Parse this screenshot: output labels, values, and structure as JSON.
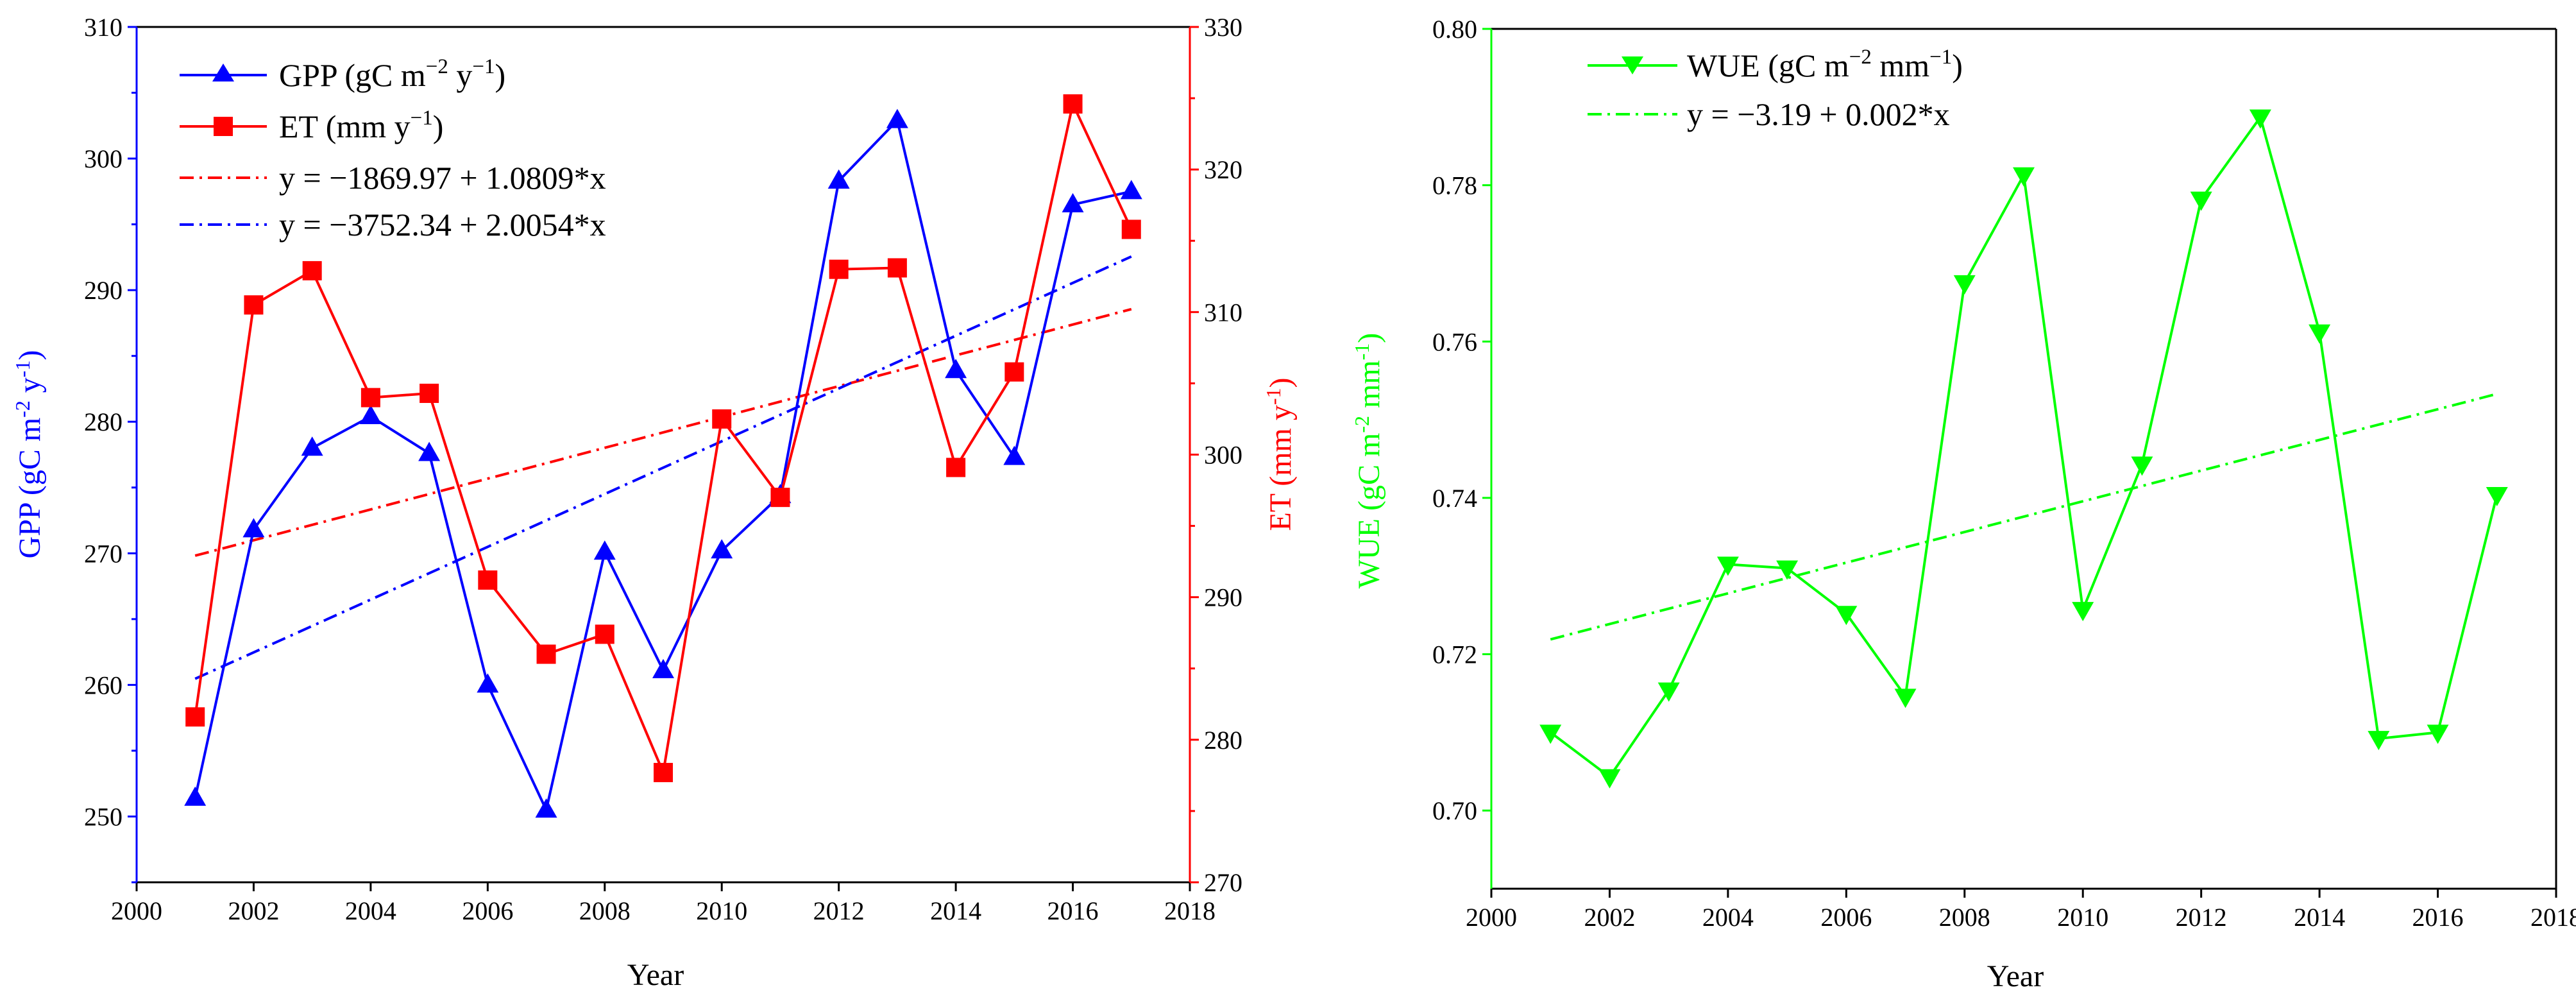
{
  "chart_data": [
    {
      "type": "line",
      "title": "",
      "xlabel": "Year",
      "ylabel": "GPP (gC m⁻² y⁻¹)",
      "y2label": "ET (mm y⁻¹)",
      "xlim": [
        2000,
        2018
      ],
      "ylim": [
        245,
        310
      ],
      "y2lim": [
        270,
        330
      ],
      "x_ticks": [
        2000,
        2002,
        2004,
        2006,
        2008,
        2010,
        2012,
        2014,
        2016,
        2018
      ],
      "y_ticks": [
        250,
        260,
        270,
        280,
        290,
        300,
        310
      ],
      "y2_ticks": [
        270,
        280,
        290,
        300,
        310,
        320,
        330
      ],
      "x": [
        2001,
        2002,
        2003,
        2004,
        2005,
        2006,
        2007,
        2008,
        2009,
        2010,
        2011,
        2012,
        2013,
        2014,
        2015,
        2016,
        2017
      ],
      "series": [
        {
          "name": "GPP (gC m−2 y−1)",
          "axis": "left",
          "color": "#0000FF",
          "marker": "triangle-up",
          "values": [
            251.4,
            271.8,
            278.0,
            280.4,
            277.6,
            260.0,
            250.5,
            270.1,
            261.1,
            270.2,
            274.4,
            298.3,
            302.9,
            283.9,
            277.3,
            296.5,
            297.5
          ]
        },
        {
          "name": "ET  (mm y−1)",
          "axis": "right",
          "color": "#FF0000",
          "marker": "square",
          "values": [
            281.6,
            310.5,
            312.9,
            304.0,
            304.3,
            291.2,
            286.0,
            287.4,
            277.7,
            302.5,
            297.0,
            313.0,
            313.1,
            299.1,
            305.8,
            324.6,
            315.8
          ]
        }
      ],
      "trendlines": [
        {
          "label": "y = −1869.97 + 1.0809*x",
          "axis": "right",
          "color": "#FF0000",
          "intercept": -1869.97,
          "slope": 1.0809
        },
        {
          "label": "y = −3752.34 + 2.0054*x",
          "axis": "left",
          "color": "#0000FF",
          "intercept": -3752.34,
          "slope": 2.0054
        }
      ]
    },
    {
      "type": "line",
      "title": "",
      "xlabel": "Year",
      "ylabel": "WUE (gC m⁻² mm⁻¹)",
      "xlim": [
        2000,
        2018
      ],
      "ylim": [
        0.69,
        0.8
      ],
      "x_ticks": [
        2000,
        2002,
        2004,
        2006,
        2008,
        2010,
        2012,
        2014,
        2016,
        2018
      ],
      "y_ticks": [
        "0.70",
        "0.72",
        "0.74",
        "0.76",
        "0.78",
        "0.80"
      ],
      "x": [
        2001,
        2002,
        2003,
        2004,
        2005,
        2006,
        2007,
        2008,
        2009,
        2010,
        2011,
        2012,
        2013,
        2014,
        2015,
        2016,
        2017
      ],
      "series": [
        {
          "name": "WUE (gC m−2 mm−1)",
          "axis": "left",
          "color": "#00FF00",
          "marker": "triangle-down",
          "values": [
            0.71,
            0.7043,
            0.7154,
            0.7315,
            0.731,
            0.7252,
            0.7146,
            0.7675,
            0.7813,
            0.7257,
            0.7443,
            0.7782,
            0.7887,
            0.7612,
            0.7092,
            0.71,
            0.7404
          ]
        }
      ],
      "trendlines": [
        {
          "label": "y = −3.19 + 0.002*x",
          "axis": "left",
          "color": "#00FF00",
          "x_range": [
            2001,
            2017
          ],
          "y_range": [
            0.7219,
            0.7533
          ]
        }
      ]
    }
  ],
  "legend": {
    "gpp": {
      "name": "GPP",
      "unit_pre": "(gC m",
      "sup1": "−2",
      "mid": " y",
      "sup2": "−1",
      "post": ")"
    },
    "et": {
      "name": "ET",
      "unit_pre": "(mm y",
      "sup1": "−1",
      "post": ")"
    },
    "fit_et": "y = −1869.97 + 1.0809*x",
    "fit_gpp": "y = −3752.34 + 2.0054*x",
    "wue": {
      "name": "WUE",
      "unit_pre": "(gC m",
      "sup1": "−2",
      "mid": " mm",
      "sup2": "−1",
      "post": ")"
    },
    "fit_wue": "y = −3.19 + 0.002*x"
  },
  "axis_labels": {
    "year": "Year",
    "gpp": {
      "pre": "GPP (gC m",
      "sup1": "-2",
      "mid": " y",
      "sup2": "-1",
      "post": ")"
    },
    "et": {
      "pre": "ET (mm y",
      "sup1": "-1",
      "post": ")"
    },
    "wue": {
      "pre": "WUE (gC m",
      "sup1": "-2",
      "mid": " mm",
      "sup2": "-1",
      "post": ")"
    }
  },
  "colors": {
    "gpp": "#0000FF",
    "et": "#FF0000",
    "wue": "#00FF00",
    "axis": "#000000"
  }
}
